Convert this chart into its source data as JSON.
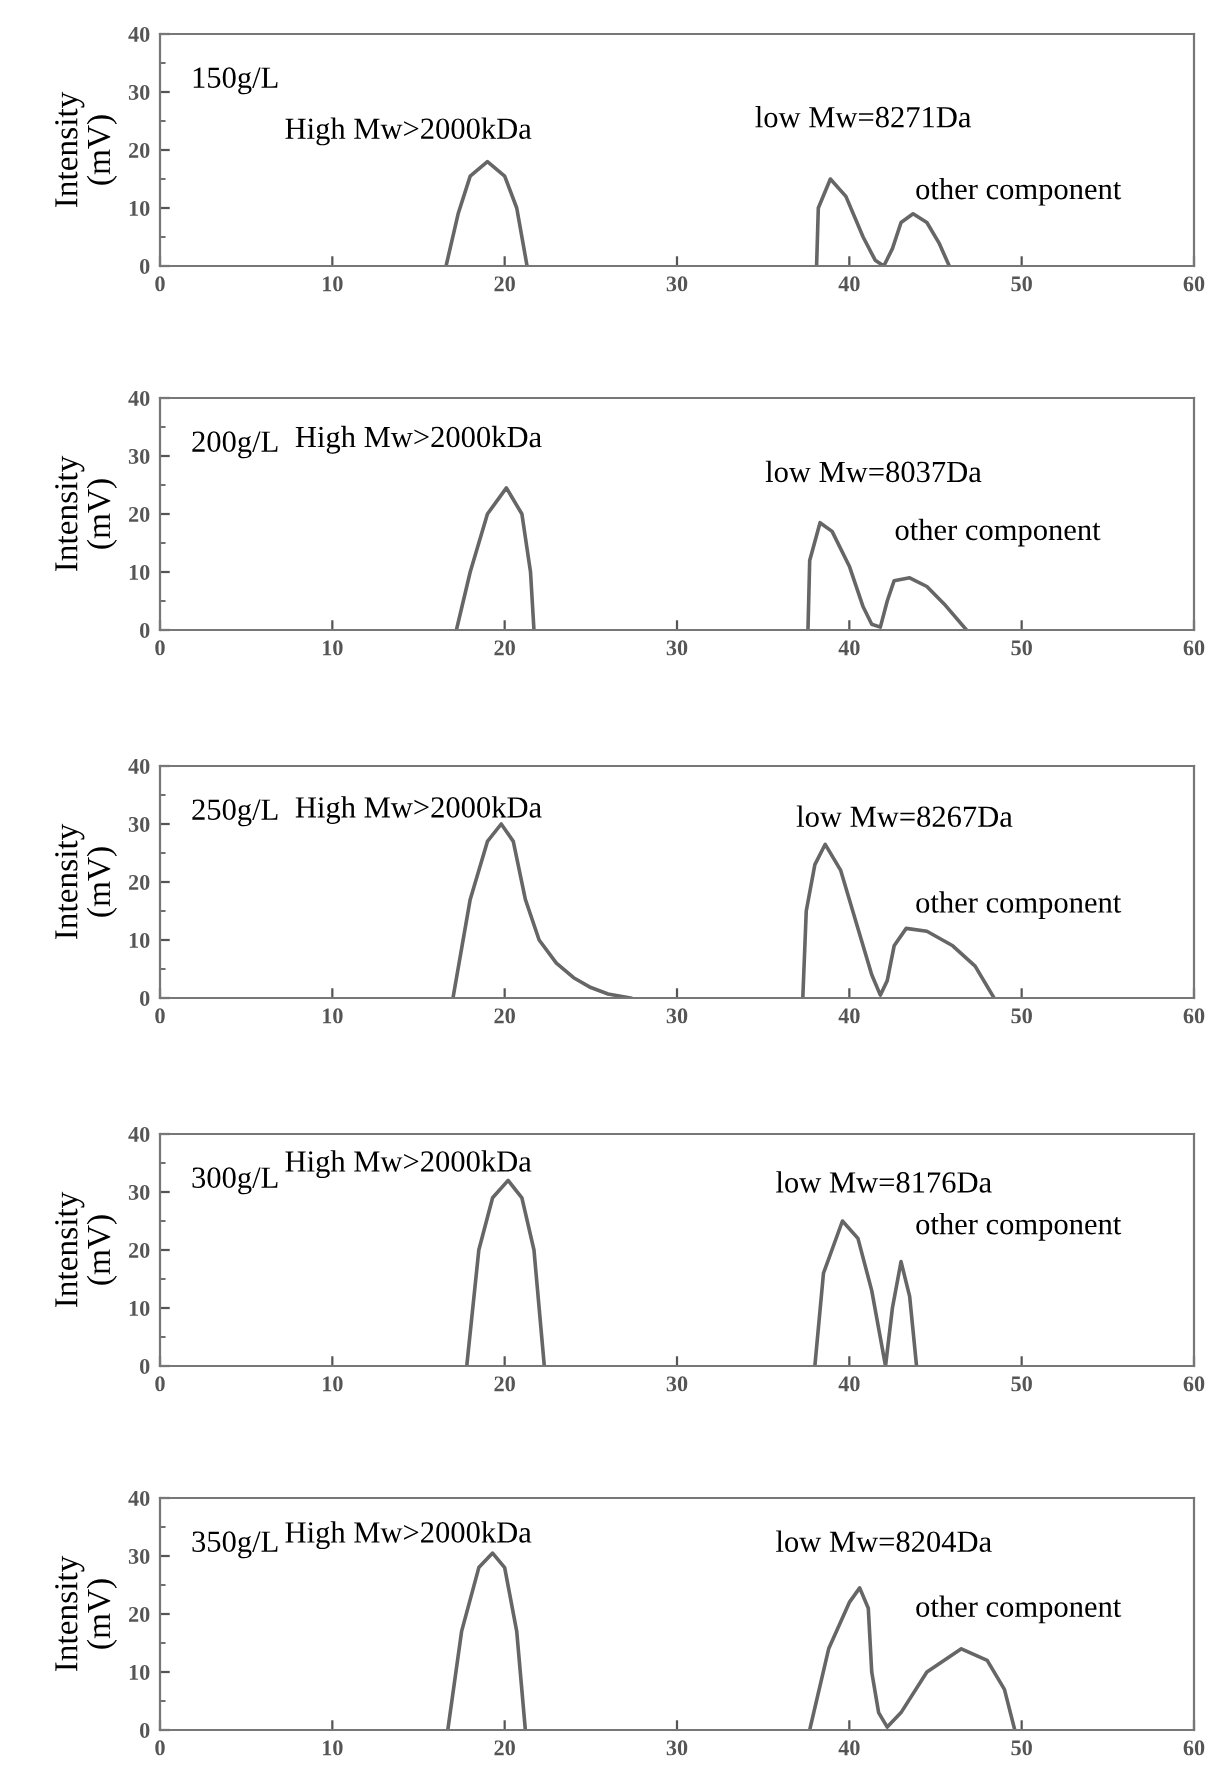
{
  "chart_data": [
    {
      "type": "line",
      "title": "150g/L",
      "ylabel": "Intensity\n(mV)",
      "xlim": [
        0,
        60
      ],
      "ylim": [
        0,
        40
      ],
      "xticks": [
        0,
        10,
        20,
        30,
        40,
        50,
        60
      ],
      "yticks": [
        0,
        10,
        20,
        30,
        40
      ],
      "grid": false,
      "marker": "none",
      "line_style": "solid",
      "series": [
        {
          "color": "#666666",
          "x": [
            16.6,
            17.3,
            18,
            19,
            20,
            20.7,
            21.3,
            30,
            38.1,
            38.2,
            38.9,
            39.8,
            40.8,
            41.5,
            42,
            42.5,
            43,
            43.7,
            44.5,
            45.2,
            45.8
          ],
          "values": [
            0,
            9,
            15.5,
            18,
            15.5,
            10,
            0,
            null,
            0,
            10,
            15,
            12,
            5,
            1,
            0,
            3,
            7.5,
            9,
            7.5,
            4,
            0
          ]
        }
      ],
      "annotations": [
        "High Mw>2000kDa",
        "low Mw=8271Da",
        "other component"
      ]
    },
    {
      "type": "line",
      "title": "200g/L",
      "ylabel": "Intensity\n(mV)",
      "xlim": [
        0,
        60
      ],
      "ylim": [
        0,
        40
      ],
      "xticks": [
        0,
        10,
        20,
        30,
        40,
        50,
        60
      ],
      "yticks": [
        0,
        10,
        20,
        30,
        40
      ],
      "grid": false,
      "marker": "none",
      "line_style": "solid",
      "series": [
        {
          "color": "#666666",
          "x": [
            17.2,
            18,
            19,
            20.1,
            21,
            21.5,
            21.7,
            30,
            37.6,
            37.7,
            38.3,
            39,
            40,
            40.8,
            41.3,
            41.8,
            42.2,
            42.6,
            43.5,
            44.5,
            45.5,
            46.8
          ],
          "values": [
            0,
            10,
            20,
            24.5,
            20,
            10,
            0,
            null,
            0,
            12,
            18.5,
            17,
            11,
            4,
            1,
            0.5,
            5,
            8.5,
            9,
            7.5,
            4.5,
            0
          ]
        }
      ],
      "annotations": [
        "High Mw>2000kDa",
        "low Mw=8037Da",
        "other component"
      ]
    },
    {
      "type": "line",
      "title": "250g/L",
      "ylabel": "Intensity\n(mV)",
      "xlim": [
        0,
        60
      ],
      "ylim": [
        0,
        40
      ],
      "xticks": [
        0,
        10,
        20,
        30,
        40,
        50,
        60
      ],
      "yticks": [
        0,
        10,
        20,
        30,
        40
      ],
      "grid": false,
      "marker": "none",
      "line_style": "solid",
      "series": [
        {
          "color": "#666666",
          "x": [
            17,
            18,
            19,
            19.8,
            20.5,
            21.2,
            22,
            23,
            24,
            25,
            26,
            27.3,
            32,
            37.3,
            37.5,
            38,
            38.6,
            39.5,
            40.5,
            41.3,
            41.8,
            42.2,
            42.6,
            43.3,
            44.5,
            46,
            47.3,
            48.4
          ],
          "values": [
            0,
            17,
            27,
            30,
            27,
            17,
            10,
            6,
            3.5,
            1.8,
            0.7,
            0,
            null,
            0,
            15,
            23,
            26.5,
            22,
            12,
            4,
            0.5,
            3,
            9,
            12,
            11.5,
            9,
            5.5,
            0
          ]
        }
      ],
      "annotations": [
        "High Mw>2000kDa",
        "low Mw=8267Da",
        "other component"
      ]
    },
    {
      "type": "line",
      "title": "300g/L",
      "ylabel": "Intensity\n(mV)",
      "xlim": [
        0,
        60
      ],
      "ylim": [
        0,
        40
      ],
      "xticks": [
        0,
        10,
        20,
        30,
        40,
        50,
        60
      ],
      "yticks": [
        0,
        10,
        20,
        30,
        40
      ],
      "grid": false,
      "marker": "none",
      "line_style": "solid",
      "series": [
        {
          "color": "#666666",
          "x": [
            17.8,
            18.5,
            19.3,
            20.2,
            21,
            21.7,
            22.3,
            30,
            38,
            38.5,
            39.6,
            40.5,
            41.3,
            42.1,
            42.5,
            43,
            43.5,
            43.9
          ],
          "values": [
            0,
            20,
            29,
            32,
            29,
            20,
            0,
            null,
            0,
            16,
            25,
            22,
            13,
            0,
            10,
            18,
            12,
            0
          ]
        }
      ],
      "annotations": [
        "High Mw>2000kDa",
        "low Mw=8176Da",
        "other component"
      ]
    },
    {
      "type": "line",
      "title": "350g/L",
      "ylabel": "Intensity\n(mV)",
      "xlim": [
        0,
        60
      ],
      "ylim": [
        0,
        40
      ],
      "xticks": [
        0,
        10,
        20,
        30,
        40,
        50,
        60
      ],
      "yticks": [
        0,
        10,
        20,
        30,
        40
      ],
      "grid": false,
      "marker": "none",
      "line_style": "solid",
      "series": [
        {
          "color": "#666666",
          "x": [
            16.7,
            17.5,
            18.5,
            19.3,
            20,
            20.7,
            21.2,
            30,
            37.7,
            38.8,
            40,
            40.6,
            41.1,
            41.3,
            41.7,
            42.2,
            43,
            44.5,
            46.5,
            48,
            49,
            49.6
          ],
          "values": [
            0,
            17,
            28,
            30.5,
            28,
            17,
            0,
            null,
            0,
            14,
            22,
            24.5,
            21,
            10,
            3,
            0.5,
            3,
            10,
            14,
            12,
            7,
            0
          ]
        }
      ],
      "annotations": [
        "High Mw>2000kDa",
        "low Mw=8204Da",
        "other component"
      ]
    }
  ]
}
